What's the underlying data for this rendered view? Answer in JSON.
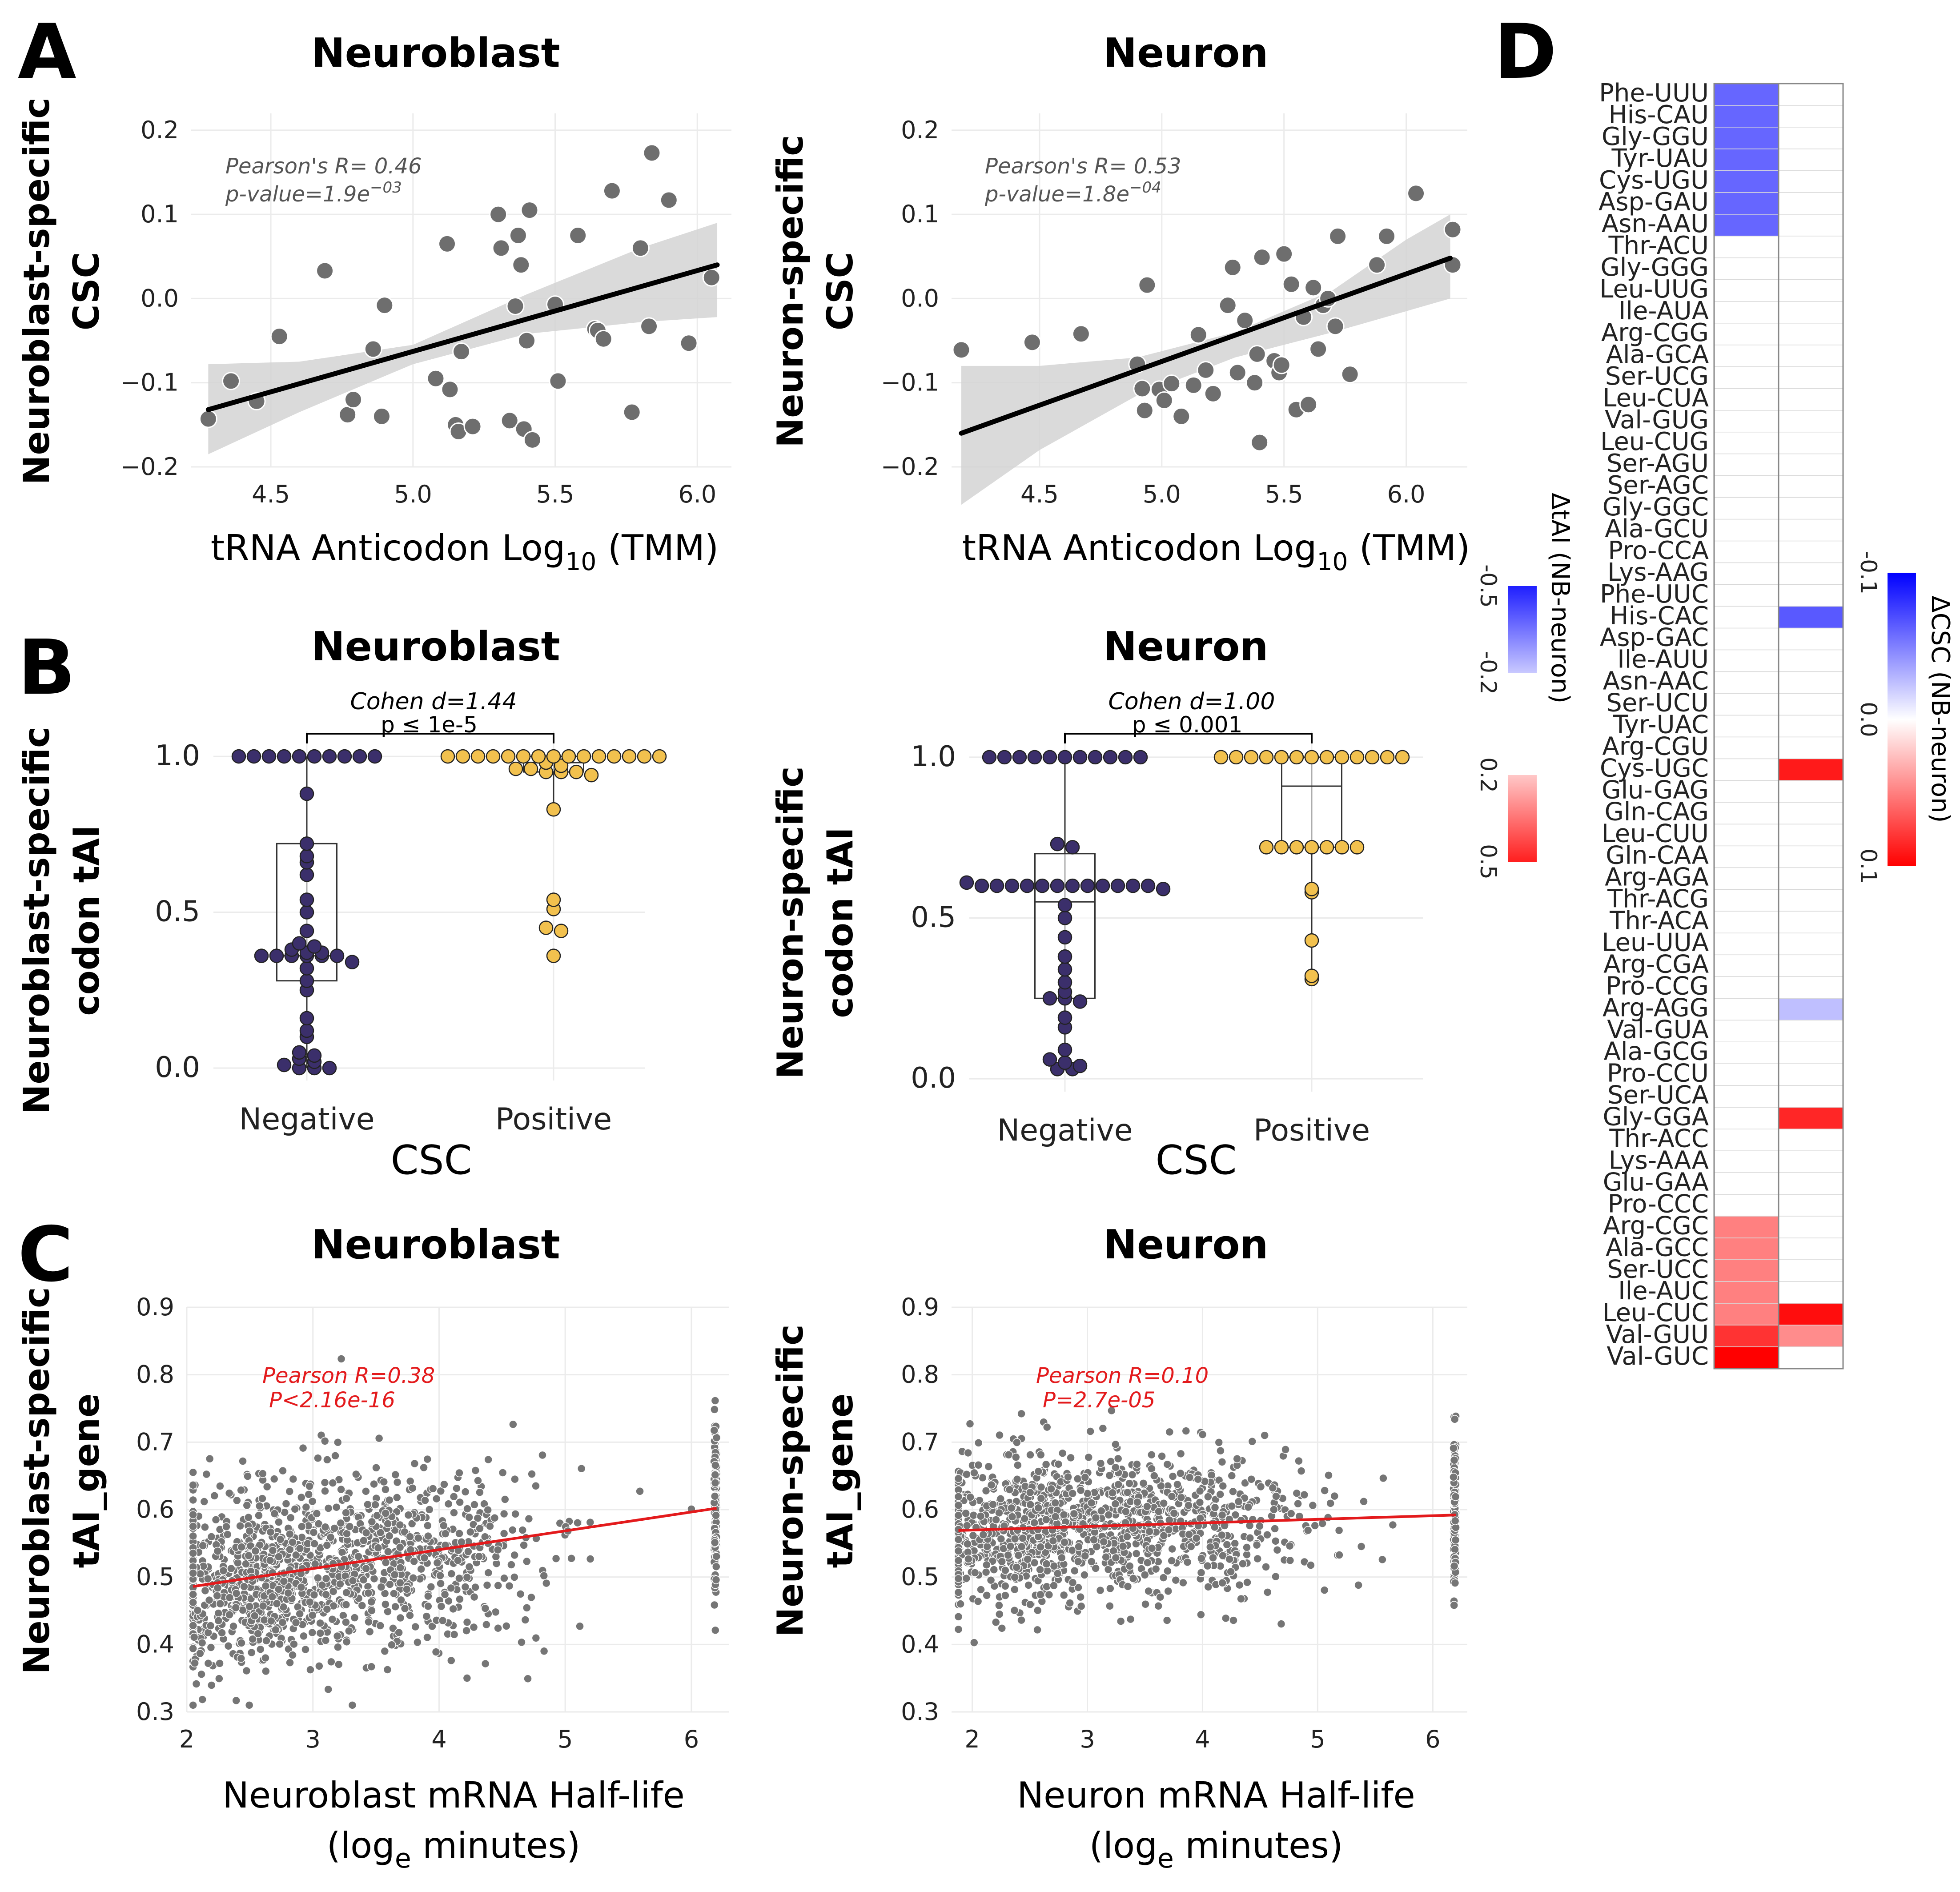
{
  "panels": {
    "A": {
      "label": "A",
      "left": {
        "title": "Neuroblast",
        "ylabel_line1": "Neuroblast-specific",
        "ylabel_line2": "CSC",
        "xlabel_main": "tRNA Anticodon Log",
        "xlabel_sub": "10",
        "xlabel_end": " (TMM)",
        "stat_line1": "Pearson's R= 0.46",
        "stat_line2_main": "p-value=1.9e",
        "stat_line2_sup": "−03"
      },
      "right": {
        "title": "Neuron",
        "ylabel_line1": "Neuron-specific",
        "ylabel_line2": "CSC",
        "xlabel_main": "tRNA Anticodon Log",
        "xlabel_sub": "10",
        "xlabel_end": " (TMM)",
        "stat_line1": "Pearson's R= 0.53",
        "stat_line2_main": "p-value=1.8e",
        "stat_line2_sup": "−04"
      }
    },
    "B": {
      "label": "B",
      "left": {
        "title": "Neuroblast",
        "ylabel_line1": "Neuroblast-specific",
        "ylabel_line2": "codon tAI",
        "xlabel": "CSC",
        "effect": "Cohen d=1.44",
        "pvalue": "p ≤ 1e-5"
      },
      "right": {
        "title": "Neuron",
        "ylabel_line1": "Neuron-specific",
        "ylabel_line2": "codon tAI",
        "xlabel": "CSC",
        "effect": "Cohen d=1.00",
        "pvalue": "p ≤ 0.001"
      }
    },
    "C": {
      "label": "C",
      "left": {
        "title": "Neuroblast",
        "ylabel_line1": "Neuroblast-specific",
        "ylabel_line2": "tAI_gene",
        "xlabel_line1": "Neuroblast mRNA Half-life",
        "xlabel_line2_main": "(log",
        "xlabel_line2_sub": "e",
        "xlabel_line2_end": " minutes)",
        "stat_line1": "Pearson R=0.38",
        "stat_line2": "P<2.16e-16"
      },
      "right": {
        "title": "Neuron",
        "ylabel_line1": "Neuron-specific",
        "ylabel_line2": "tAI_gene",
        "xlabel_line1": "Neuron mRNA Half-life",
        "xlabel_line2_main": "(log",
        "xlabel_line2_sub": "e",
        "xlabel_line2_end": " minutes)",
        "stat_line1": "Pearson R=0.10",
        "stat_line2": "P=2.7e-05"
      }
    },
    "D": {
      "label": "D",
      "legend_tai_title": "ΔtAI (NB-neuron)",
      "legend_csc_title": "ΔCSC (NB-neuron)"
    }
  },
  "colors": {
    "point_gray": "#6e6e6e",
    "negative": "#3b2f6b",
    "positive": "#f2c14e",
    "red": "#e31a1c",
    "blue": "#3333ff",
    "band": "#d3d3d3"
  },
  "chart_data": [
    {
      "id": "A-left",
      "type": "scatter",
      "title": "Neuroblast",
      "xlabel": "tRNA Anticodon Log10 (TMM)",
      "ylabel": "Neuroblast-specific CSC",
      "xlim": [
        4.22,
        6.12
      ],
      "ylim": [
        -0.2,
        0.22
      ],
      "xticks": [
        4.5,
        5.0,
        5.5,
        6.0
      ],
      "xtick_labels": [
        "4.5",
        "5.0",
        "5.5",
        "6.0"
      ],
      "yticks": [
        -0.2,
        -0.1,
        0.0,
        0.1,
        0.2
      ],
      "ytick_labels": [
        "−0.2",
        "−0.1",
        "0.0",
        "0.1",
        "0.2"
      ],
      "fit": {
        "x": [
          4.28,
          6.07
        ],
        "y": [
          -0.132,
          0.04
        ]
      },
      "band": {
        "x": [
          4.28,
          4.6,
          5.0,
          5.4,
          5.8,
          6.07
        ],
        "lower": [
          -0.185,
          -0.135,
          -0.078,
          -0.042,
          -0.028,
          -0.022
        ],
        "upper": [
          -0.078,
          -0.075,
          -0.055,
          0.005,
          0.06,
          0.09
        ]
      },
      "points": [
        [
          4.28,
          -0.143
        ],
        [
          4.36,
          -0.098
        ],
        [
          4.45,
          -0.122
        ],
        [
          4.53,
          -0.045
        ],
        [
          4.69,
          0.033
        ],
        [
          4.77,
          -0.138
        ],
        [
          4.79,
          -0.12
        ],
        [
          4.86,
          -0.06
        ],
        [
          4.89,
          -0.14
        ],
        [
          4.9,
          -0.008
        ],
        [
          5.08,
          -0.095
        ],
        [
          5.12,
          0.065
        ],
        [
          5.13,
          -0.108
        ],
        [
          5.15,
          -0.15
        ],
        [
          5.16,
          -0.158
        ],
        [
          5.17,
          -0.063
        ],
        [
          5.21,
          -0.152
        ],
        [
          5.3,
          0.1
        ],
        [
          5.31,
          0.06
        ],
        [
          5.34,
          -0.145
        ],
        [
          5.36,
          -0.009
        ],
        [
          5.37,
          0.075
        ],
        [
          5.38,
          0.04
        ],
        [
          5.39,
          -0.155
        ],
        [
          5.4,
          -0.05
        ],
        [
          5.41,
          0.105
        ],
        [
          5.42,
          -0.168
        ],
        [
          5.5,
          -0.007
        ],
        [
          5.51,
          -0.098
        ],
        [
          5.58,
          0.075
        ],
        [
          5.64,
          -0.036
        ],
        [
          5.65,
          -0.038
        ],
        [
          5.67,
          -0.048
        ],
        [
          5.7,
          0.128
        ],
        [
          5.77,
          -0.135
        ],
        [
          5.8,
          0.06
        ],
        [
          5.83,
          -0.033
        ],
        [
          5.84,
          0.173
        ],
        [
          5.9,
          0.117
        ],
        [
          5.97,
          -0.053
        ],
        [
          6.05,
          0.025
        ]
      ]
    },
    {
      "id": "A-right",
      "type": "scatter",
      "title": "Neuron",
      "xlabel": "tRNA Anticodon Log10 (TMM)",
      "ylabel": "Neuron-specific CSC",
      "xlim": [
        4.14,
        6.25
      ],
      "ylim": [
        -0.2,
        0.22
      ],
      "xticks": [
        4.5,
        5.0,
        5.5,
        6.0
      ],
      "xtick_labels": [
        "4.5",
        "5.0",
        "5.5",
        "6.0"
      ],
      "yticks": [
        -0.2,
        -0.1,
        0.0,
        0.1,
        0.2
      ],
      "ytick_labels": [
        "−0.2",
        "−0.1",
        "0.0",
        "0.1",
        "0.2"
      ],
      "fit": {
        "x": [
          4.18,
          6.18
        ],
        "y": [
          -0.16,
          0.048
        ]
      },
      "band": {
        "x": [
          4.18,
          4.5,
          4.9,
          5.3,
          5.7,
          6.0,
          6.18
        ],
        "lower": [
          -0.245,
          -0.18,
          -0.115,
          -0.07,
          -0.04,
          -0.015,
          0.0
        ],
        "upper": [
          -0.08,
          -0.08,
          -0.07,
          -0.04,
          0.01,
          0.07,
          0.1
        ]
      },
      "points": [
        [
          4.18,
          -0.061
        ],
        [
          4.47,
          -0.052
        ],
        [
          4.67,
          -0.042
        ],
        [
          4.9,
          -0.078
        ],
        [
          4.92,
          -0.107
        ],
        [
          4.93,
          -0.133
        ],
        [
          4.94,
          0.016
        ],
        [
          4.99,
          -0.108
        ],
        [
          5.01,
          -0.121
        ],
        [
          5.04,
          -0.101
        ],
        [
          5.08,
          -0.14
        ],
        [
          5.13,
          -0.103
        ],
        [
          5.15,
          -0.043
        ],
        [
          5.18,
          -0.085
        ],
        [
          5.21,
          -0.113
        ],
        [
          5.27,
          -0.008
        ],
        [
          5.29,
          0.037
        ],
        [
          5.31,
          -0.088
        ],
        [
          5.34,
          -0.026
        ],
        [
          5.38,
          -0.1
        ],
        [
          5.39,
          -0.066
        ],
        [
          5.4,
          -0.171
        ],
        [
          5.41,
          0.049
        ],
        [
          5.46,
          -0.074
        ],
        [
          5.48,
          -0.088
        ],
        [
          5.49,
          -0.079
        ],
        [
          5.5,
          0.053
        ],
        [
          5.53,
          0.017
        ],
        [
          5.55,
          -0.132
        ],
        [
          5.58,
          -0.022
        ],
        [
          5.6,
          -0.126
        ],
        [
          5.62,
          0.013
        ],
        [
          5.64,
          -0.06
        ],
        [
          5.66,
          -0.008
        ],
        [
          5.68,
          0.0
        ],
        [
          5.71,
          -0.033
        ],
        [
          5.72,
          0.074
        ],
        [
          5.77,
          -0.09
        ],
        [
          5.88,
          0.04
        ],
        [
          5.92,
          0.074
        ],
        [
          6.04,
          0.125
        ],
        [
          6.19,
          0.082
        ],
        [
          6.19,
          0.04
        ]
      ]
    },
    {
      "id": "B-left",
      "type": "box+swarm",
      "title": "Neuroblast",
      "xlabel": "CSC",
      "ylabel": "Neuroblast-specific codon tAI",
      "categories": [
        "Negative",
        "Positive"
      ],
      "ylim": [
        -0.04,
        1.08
      ],
      "yticks": [
        0.0,
        0.5,
        1.0
      ],
      "ytick_labels": [
        "0.0",
        "0.5",
        "1.0"
      ],
      "box": [
        {
          "q1": 0.28,
          "median": 0.36,
          "q3": 0.72,
          "min": 0.0,
          "max": 1.0
        },
        {
          "q1": 0.95,
          "median": 0.98,
          "q3": 1.0,
          "min": 0.83,
          "max": 1.0
        }
      ],
      "groups": [
        {
          "name": "Negative",
          "values": [
            1,
            1,
            1,
            1,
            1,
            1,
            1,
            1,
            1,
            1,
            0.88,
            0.72,
            0.68,
            0.66,
            0.62,
            0.54,
            0.5,
            0.44,
            0.4,
            0.39,
            0.38,
            0.37,
            0.37,
            0.36,
            0.36,
            0.36,
            0.36,
            0.36,
            0.36,
            0.34,
            0.32,
            0.28,
            0.25,
            0.16,
            0.12,
            0.1,
            0.05,
            0.04,
            0.03,
            0.02,
            0.01,
            0.0,
            0.0,
            0.0
          ]
        },
        {
          "name": "Positive",
          "values": [
            1,
            1,
            1,
            1,
            1,
            1,
            1,
            1,
            1,
            1,
            1,
            1,
            1,
            1,
            1,
            0.98,
            0.97,
            0.96,
            0.96,
            0.95,
            0.95,
            0.95,
            0.94,
            0.83,
            0.54,
            0.51,
            0.45,
            0.44,
            0.36
          ]
        }
      ]
    },
    {
      "id": "B-right",
      "type": "box+swarm",
      "title": "Neuron",
      "xlabel": "CSC",
      "ylabel": "Neuron-specific codon tAI",
      "categories": [
        "Negative",
        "Positive"
      ],
      "ylim": [
        -0.04,
        1.08
      ],
      "yticks": [
        0.0,
        0.5,
        1.0
      ],
      "ytick_labels": [
        "0.0",
        "0.5",
        "1.0"
      ],
      "box": [
        {
          "q1": 0.25,
          "median": 0.55,
          "q3": 0.7,
          "min": 0.03,
          "max": 1.0
        },
        {
          "q1": 0.72,
          "median": 0.91,
          "q3": 1.0,
          "min": 0.31,
          "max": 1.0
        }
      ],
      "groups": [
        {
          "name": "Negative",
          "values": [
            1,
            1,
            1,
            1,
            1,
            1,
            1,
            1,
            1,
            1,
            1,
            0.73,
            0.72,
            0.61,
            0.6,
            0.6,
            0.6,
            0.6,
            0.6,
            0.6,
            0.6,
            0.6,
            0.6,
            0.6,
            0.6,
            0.6,
            0.59,
            0.54,
            0.5,
            0.44,
            0.38,
            0.34,
            0.3,
            0.27,
            0.25,
            0.25,
            0.24,
            0.19,
            0.16,
            0.09,
            0.06,
            0.05,
            0.04,
            0.03,
            0.03
          ]
        },
        {
          "name": "Positive",
          "values": [
            1,
            1,
            1,
            1,
            1,
            1,
            1,
            1,
            1,
            1,
            1,
            1,
            1,
            0.72,
            0.72,
            0.72,
            0.72,
            0.72,
            0.72,
            0.72,
            0.59,
            0.58,
            0.43,
            0.32,
            0.31
          ]
        }
      ]
    },
    {
      "id": "C-left",
      "type": "scatter",
      "title": "Neuroblast",
      "xlabel": "Neuroblast mRNA Half-life (loge minutes)",
      "ylabel": "Neuroblast-specific tAI_gene",
      "xlim": [
        2.0,
        6.3
      ],
      "ylim": [
        0.3,
        0.9
      ],
      "xticks": [
        2,
        3,
        4,
        5,
        6
      ],
      "xtick_labels": [
        "2",
        "3",
        "4",
        "5",
        "6"
      ],
      "yticks": [
        0.3,
        0.4,
        0.5,
        0.6,
        0.7,
        0.8,
        0.9
      ],
      "ytick_labels": [
        "0.3",
        "0.4",
        "0.5",
        "0.6",
        "0.7",
        "0.8",
        "0.9"
      ],
      "fit": {
        "x": [
          2.05,
          6.2
        ],
        "y": [
          0.486,
          0.602
        ]
      },
      "n_points": 1500,
      "x_range": [
        2.05,
        6.2
      ],
      "noise_sd": 0.065
    },
    {
      "id": "C-right",
      "type": "scatter",
      "title": "Neuron",
      "xlabel": "Neuron mRNA Half-life (loge minutes)",
      "ylabel": "Neuron-specific tAI_gene",
      "xlim": [
        1.82,
        6.3
      ],
      "ylim": [
        0.3,
        0.9
      ],
      "xticks": [
        2,
        3,
        4,
        5,
        6
      ],
      "xtick_labels": [
        "2",
        "3",
        "4",
        "5",
        "6"
      ],
      "yticks": [
        0.3,
        0.4,
        0.5,
        0.6,
        0.7,
        0.8,
        0.9
      ],
      "ytick_labels": [
        "0.3",
        "0.4",
        "0.5",
        "0.6",
        "0.7",
        "0.8",
        "0.9"
      ],
      "fit": {
        "x": [
          1.88,
          6.2
        ],
        "y": [
          0.569,
          0.592
        ]
      },
      "n_points": 1400,
      "x_range": [
        1.88,
        6.2
      ],
      "noise_sd": 0.055
    },
    {
      "id": "D",
      "type": "heatmap",
      "columns": [
        "ΔtAI",
        "ΔCSC"
      ],
      "rows": [
        "Phe-UUU",
        "His-CAU",
        "Gly-GGU",
        "Tyr-UAU",
        "Cys-UGU",
        "Asp-GAU",
        "Asn-AAU",
        "Thr-ACU",
        "Gly-GGG",
        "Leu-UUG",
        "Ile-AUA",
        "Arg-CGG",
        "Ala-GCA",
        "Ser-UCG",
        "Leu-CUA",
        "Val-GUG",
        "Leu-CUG",
        "Ser-AGU",
        "Ser-AGC",
        "Gly-GGC",
        "Ala-GCU",
        "Pro-CCA",
        "Lys-AAG",
        "Phe-UUC",
        "His-CAC",
        "Asp-GAC",
        "Ile-AUU",
        "Asn-AAC",
        "Ser-UCU",
        "Tyr-UAC",
        "Arg-CGU",
        "Cys-UGC",
        "Glu-GAG",
        "Gln-CAG",
        "Leu-CUU",
        "Gln-CAA",
        "Arg-AGA",
        "Thr-ACG",
        "Thr-ACA",
        "Leu-UUA",
        "Arg-CGA",
        "Pro-CCG",
        "Arg-AGG",
        "Val-GUA",
        "Ala-GCG",
        "Pro-CCU",
        "Ser-UCA",
        "Gly-GGA",
        "Thr-ACC",
        "Lys-AAA",
        "Glu-GAA",
        "Pro-CCC",
        "Arg-CGC",
        "Ala-GCC",
        "Ser-UCC",
        "Ile-AUC",
        "Leu-CUC",
        "Val-GUU",
        "Val-GUC"
      ],
      "tai_values": [
        -0.3,
        -0.3,
        -0.3,
        -0.3,
        -0.3,
        -0.3,
        -0.3,
        0,
        0,
        0,
        0,
        0,
        0,
        0,
        0,
        0,
        0,
        0,
        0,
        0,
        0,
        0,
        0,
        0,
        0,
        0,
        0,
        0,
        0,
        0,
        0,
        0,
        0,
        0,
        0,
        0,
        0,
        0,
        0,
        0,
        0,
        0,
        0,
        0,
        0,
        0,
        0,
        0,
        0,
        0,
        0,
        0,
        0.25,
        0.25,
        0.25,
        0.25,
        0.25,
        0.4,
        0.5
      ],
      "csc_values": [
        0,
        0,
        0,
        0,
        0,
        0,
        0,
        0,
        0,
        0,
        0,
        0,
        0,
        0,
        0,
        0,
        0,
        0,
        0,
        0,
        0,
        0,
        0,
        0,
        -0.065,
        0,
        0,
        0,
        0,
        0,
        0,
        0.09,
        0,
        0,
        0,
        0,
        0,
        0,
        0,
        0,
        0,
        0,
        -0.025,
        0,
        0,
        0,
        0,
        0.085,
        0,
        0,
        0,
        0,
        0,
        0,
        0,
        0,
        0.095,
        0.045,
        0
      ],
      "tai_legend": {
        "title": "ΔtAI (NB-neuron)",
        "tick_labels": [
          "-0.5",
          "-0.2",
          "0.2",
          "0.5"
        ],
        "range": [
          -0.5,
          0.5
        ]
      },
      "csc_legend": {
        "title": "ΔCSC (NB-neuron)",
        "tick_labels": [
          "-0.1",
          "0.0",
          "0.1"
        ],
        "range": [
          -0.1,
          0.1
        ]
      }
    }
  ]
}
